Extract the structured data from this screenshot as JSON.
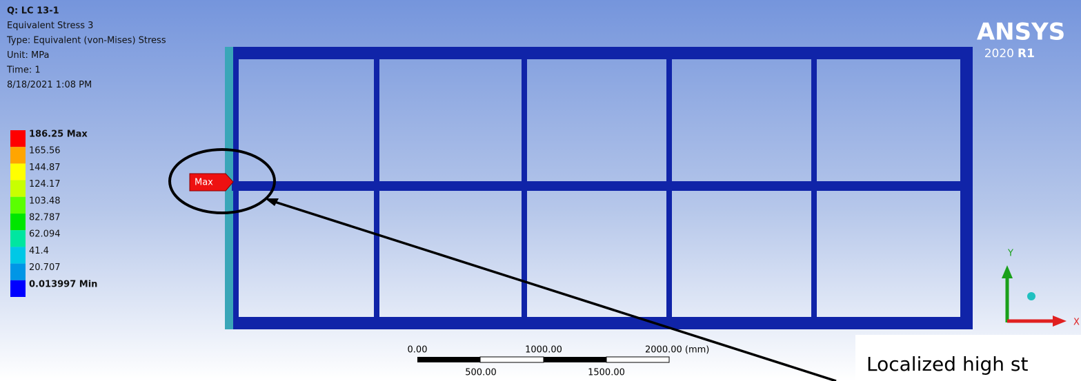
{
  "result_info": {
    "lines": [
      "Q: LC 13-1",
      "Equivalent Stress 3",
      "Type: Equivalent (von-Mises) Stress",
      "Unit: MPa",
      "Time: 1",
      "8/18/2021 1:08 PM"
    ]
  },
  "legend": [
    {
      "label": "186.25 Max",
      "color": "#ff0000"
    },
    {
      "label": "165.56",
      "color": "#ffa500"
    },
    {
      "label": "144.87",
      "color": "#ffff00"
    },
    {
      "label": "124.17",
      "color": "#c8ff00"
    },
    {
      "label": "103.48",
      "color": "#5aff00"
    },
    {
      "label": "82.787",
      "color": "#00e600"
    },
    {
      "label": "62.094",
      "color": "#00e6a0"
    },
    {
      "label": "41.4",
      "color": "#00c8e6"
    },
    {
      "label": "20.707",
      "color": "#0096e6"
    },
    {
      "label": "0.013997 Min",
      "color": "#0000ff"
    }
  ],
  "max_probe": "Max",
  "logo": {
    "name": "ANSYS",
    "version": "2020",
    "release": "R1"
  },
  "scale_bar": {
    "top_labels": [
      "0.00",
      "1000.00",
      "2000.00 (mm)"
    ],
    "bottom_labels": [
      "500.00",
      "1500.00"
    ]
  },
  "triad": {
    "y": "Y",
    "x": "X"
  },
  "annotation": "Localized high st"
}
